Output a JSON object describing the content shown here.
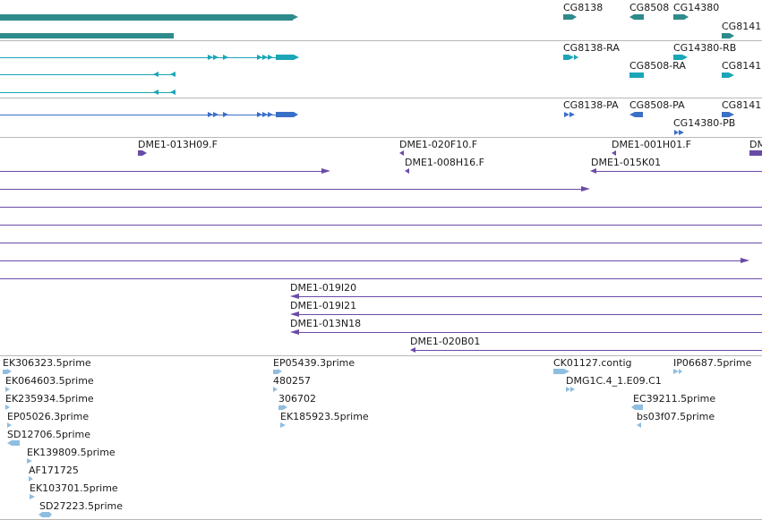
{
  "colors": {
    "gene_track": "#2e8b8b",
    "transcript_track": "#1aa6b7",
    "protein_track": "#3a6fc7",
    "clone_track": "#6a4ba8",
    "est_track": "#8fbde0",
    "separator": "#b8b8b8",
    "text": "#1a1a1a"
  },
  "genes": [
    "CG8138",
    "CG8508",
    "CG14380",
    "CG8141"
  ],
  "transcripts": [
    "CG8138-RA",
    "CG14380-RB",
    "CG8508-RA",
    "CG8141"
  ],
  "proteins": [
    "CG8138-PA",
    "CG8508-PA",
    "CG8141",
    "CG14380-PB"
  ],
  "clones": {
    "top_row": [
      "DME1-013H09.F",
      "DME1-020F10.F",
      "DME1-001H01.F",
      "DM"
    ],
    "second_row": [
      "DME1-008H16.F",
      "DME1-015K01"
    ],
    "bottom_rows": [
      "DME1-019I20",
      "DME1-019I21",
      "DME1-013N18",
      "DME1-020B01"
    ]
  },
  "ests": {
    "col1": [
      "EK306323.5prime",
      "EK064603.5prime",
      "EK235934.5prime",
      "EP05026.3prime",
      "SD12706.5prime",
      "EK139809.5prime",
      "AF171725",
      "EK103701.5prime",
      "SD27223.5prime"
    ],
    "col2": [
      "EP05439.3prime",
      "480257",
      "306702",
      "EK185923.5prime"
    ],
    "col3": [
      "CK01127.contig",
      "DMG1C.4_1.E09.C1"
    ],
    "col4": [
      "IP06687.5prime",
      "EC39211.5prime",
      "bs03f07.5prime"
    ]
  }
}
